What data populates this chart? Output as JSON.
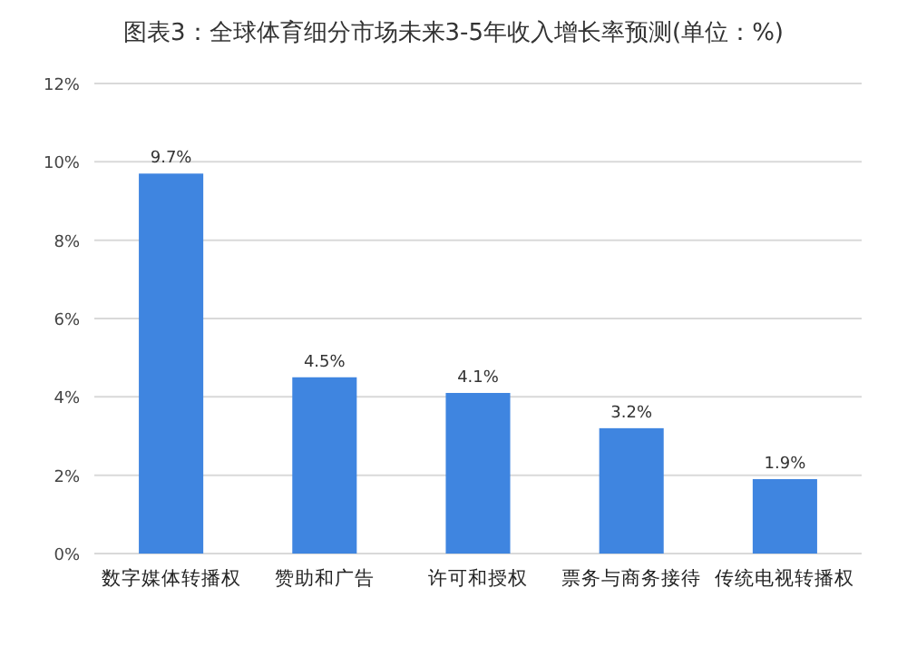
{
  "chart_data": {
    "type": "bar",
    "title": "图表3：全球体育细分市场未来3-5年收入增长率预测(单位：%)",
    "categories": [
      "数字媒体转播权",
      "赞助和广告",
      "许可和授权",
      "票务与商务接待",
      "传统电视转播权"
    ],
    "values": [
      9.7,
      4.5,
      4.1,
      3.2,
      1.9
    ],
    "value_labels": [
      "9.7%",
      "4.5%",
      "4.1%",
      "3.2%",
      "1.9%"
    ],
    "color": "#3f85e0",
    "ylim": [
      0,
      12
    ],
    "yticks": [
      {
        "value": 0,
        "label": "0%"
      },
      {
        "value": 2,
        "label": "2%"
      },
      {
        "value": 4,
        "label": "4%"
      },
      {
        "value": 6,
        "label": "6%"
      },
      {
        "value": 8,
        "label": "8%"
      },
      {
        "value": 10,
        "label": "10%"
      },
      {
        "value": 12,
        "label": "12%"
      }
    ],
    "grid": "y"
  }
}
